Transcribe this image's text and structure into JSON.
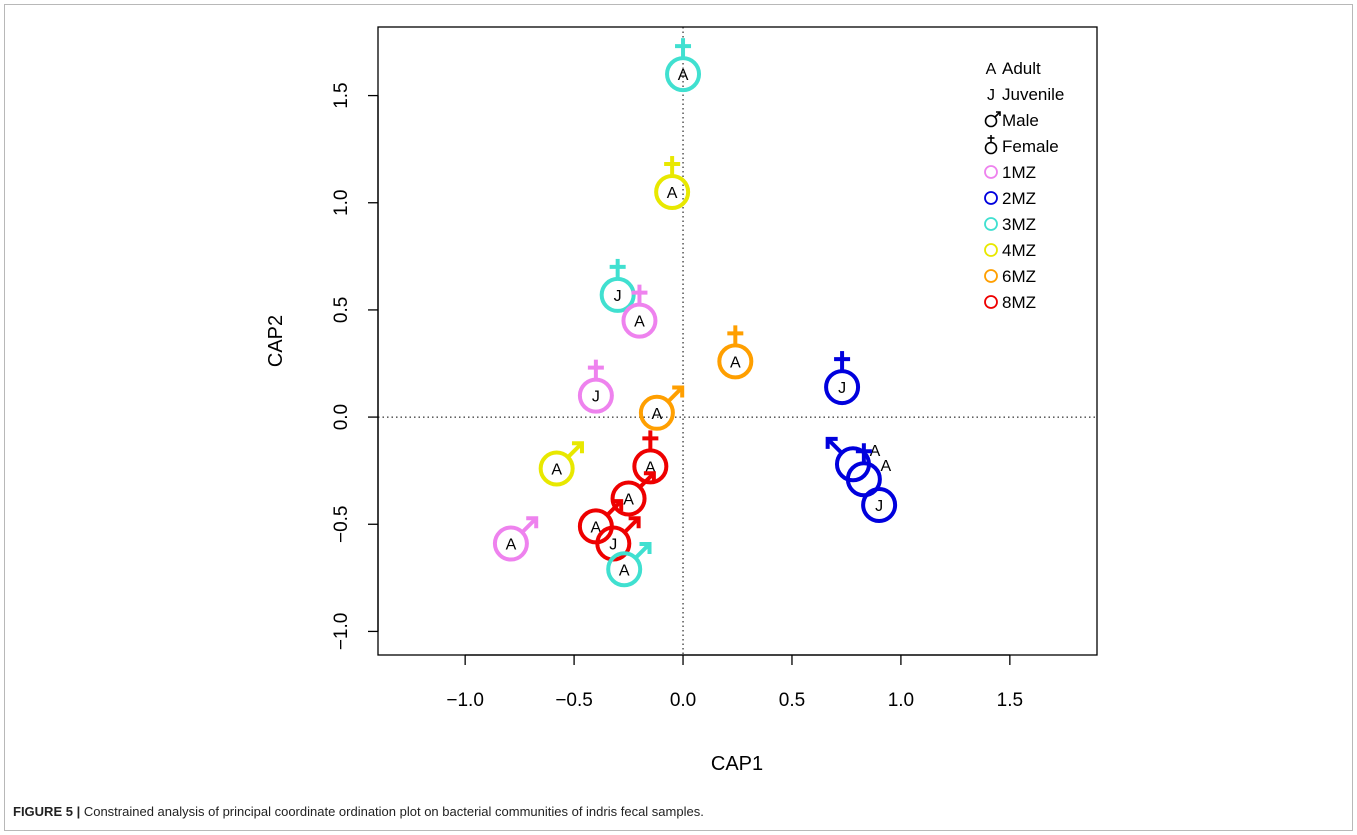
{
  "figure": {
    "label": "FIGURE 5 |",
    "caption": "Constrained analysis of principal coordinate ordination plot on bacterial communities of indris fecal samples."
  },
  "colors": {
    "1MZ": "#ee82ee",
    "2MZ": "#0000dd",
    "3MZ": "#40e0d0",
    "4MZ": "#e8e800",
    "6MZ": "#ff9f00",
    "8MZ": "#ee0000",
    "axis": "#000000"
  },
  "chart_data": {
    "type": "scatter",
    "xlabel": "CAP1",
    "ylabel": "CAP2",
    "xlim": [
      -1.4,
      1.9
    ],
    "ylim": [
      -1.11,
      1.82
    ],
    "xticks": [
      -1.0,
      -0.5,
      0.0,
      0.5,
      1.0,
      1.5
    ],
    "xtick_labels": [
      "−1.0",
      "−0.5",
      "0.0",
      "0.5",
      "1.0",
      "1.5"
    ],
    "yticks": [
      -1.0,
      -0.5,
      0.0,
      0.5,
      1.0,
      1.5
    ],
    "ytick_labels": [
      "−1.0",
      "−0.5",
      "0.0",
      "0.5",
      "1.0",
      "1.5"
    ],
    "reference_lines": {
      "x": 0,
      "y": 0,
      "style": "dotted"
    },
    "grid": false,
    "legend_position": "top-right",
    "legend": [
      {
        "symbol": "A",
        "label": "Adult",
        "kind": "text"
      },
      {
        "symbol": "J",
        "label": "Juvenile",
        "kind": "text"
      },
      {
        "symbol": "♂",
        "label": "Male",
        "kind": "male"
      },
      {
        "symbol": "♀",
        "label": "Female",
        "kind": "female"
      },
      {
        "label": "1MZ",
        "kind": "circle",
        "group": "1MZ"
      },
      {
        "label": "2MZ",
        "kind": "circle",
        "group": "2MZ"
      },
      {
        "label": "3MZ",
        "kind": "circle",
        "group": "3MZ"
      },
      {
        "label": "4MZ",
        "kind": "circle",
        "group": "4MZ"
      },
      {
        "label": "6MZ",
        "kind": "circle",
        "group": "6MZ"
      },
      {
        "label": "8MZ",
        "kind": "circle",
        "group": "8MZ"
      }
    ],
    "points": [
      {
        "group": "3MZ",
        "age": "A",
        "sex": "female",
        "x": 0.0,
        "y": 1.6
      },
      {
        "group": "4MZ",
        "age": "A",
        "sex": "female",
        "x": -0.05,
        "y": 1.05
      },
      {
        "group": "3MZ",
        "age": "J",
        "sex": "female",
        "x": -0.3,
        "y": 0.57
      },
      {
        "group": "1MZ",
        "age": "A",
        "sex": "female",
        "x": -0.2,
        "y": 0.45
      },
      {
        "group": "6MZ",
        "age": "A",
        "sex": "female",
        "x": 0.24,
        "y": 0.26
      },
      {
        "group": "2MZ",
        "age": "J",
        "sex": "female",
        "x": 0.73,
        "y": 0.14
      },
      {
        "group": "1MZ",
        "age": "J",
        "sex": "female",
        "x": -0.4,
        "y": 0.1
      },
      {
        "group": "6MZ",
        "age": "A",
        "sex": "male",
        "x": -0.12,
        "y": 0.02
      },
      {
        "group": "8MZ",
        "age": "A",
        "sex": "female",
        "x": -0.15,
        "y": -0.23
      },
      {
        "group": "4MZ",
        "age": "A",
        "sex": "male",
        "x": -0.58,
        "y": -0.24
      },
      {
        "group": "2MZ",
        "age": "A",
        "sex": "male",
        "x": 0.78,
        "y": -0.22,
        "label_outside": true
      },
      {
        "group": "2MZ",
        "age": "A",
        "sex": "female",
        "x": 0.83,
        "y": -0.29,
        "label_outside": true
      },
      {
        "group": "2MZ",
        "age": "J",
        "sex": "none",
        "x": 0.9,
        "y": -0.41
      },
      {
        "group": "8MZ",
        "age": "A",
        "sex": "male",
        "x": -0.25,
        "y": -0.38
      },
      {
        "group": "8MZ",
        "age": "A",
        "sex": "male",
        "x": -0.4,
        "y": -0.51
      },
      {
        "group": "8MZ",
        "age": "J",
        "sex": "male",
        "x": -0.32,
        "y": -0.59
      },
      {
        "group": "1MZ",
        "age": "A",
        "sex": "male",
        "x": -0.79,
        "y": -0.59
      },
      {
        "group": "3MZ",
        "age": "A",
        "sex": "male",
        "x": -0.27,
        "y": -0.71
      }
    ]
  }
}
